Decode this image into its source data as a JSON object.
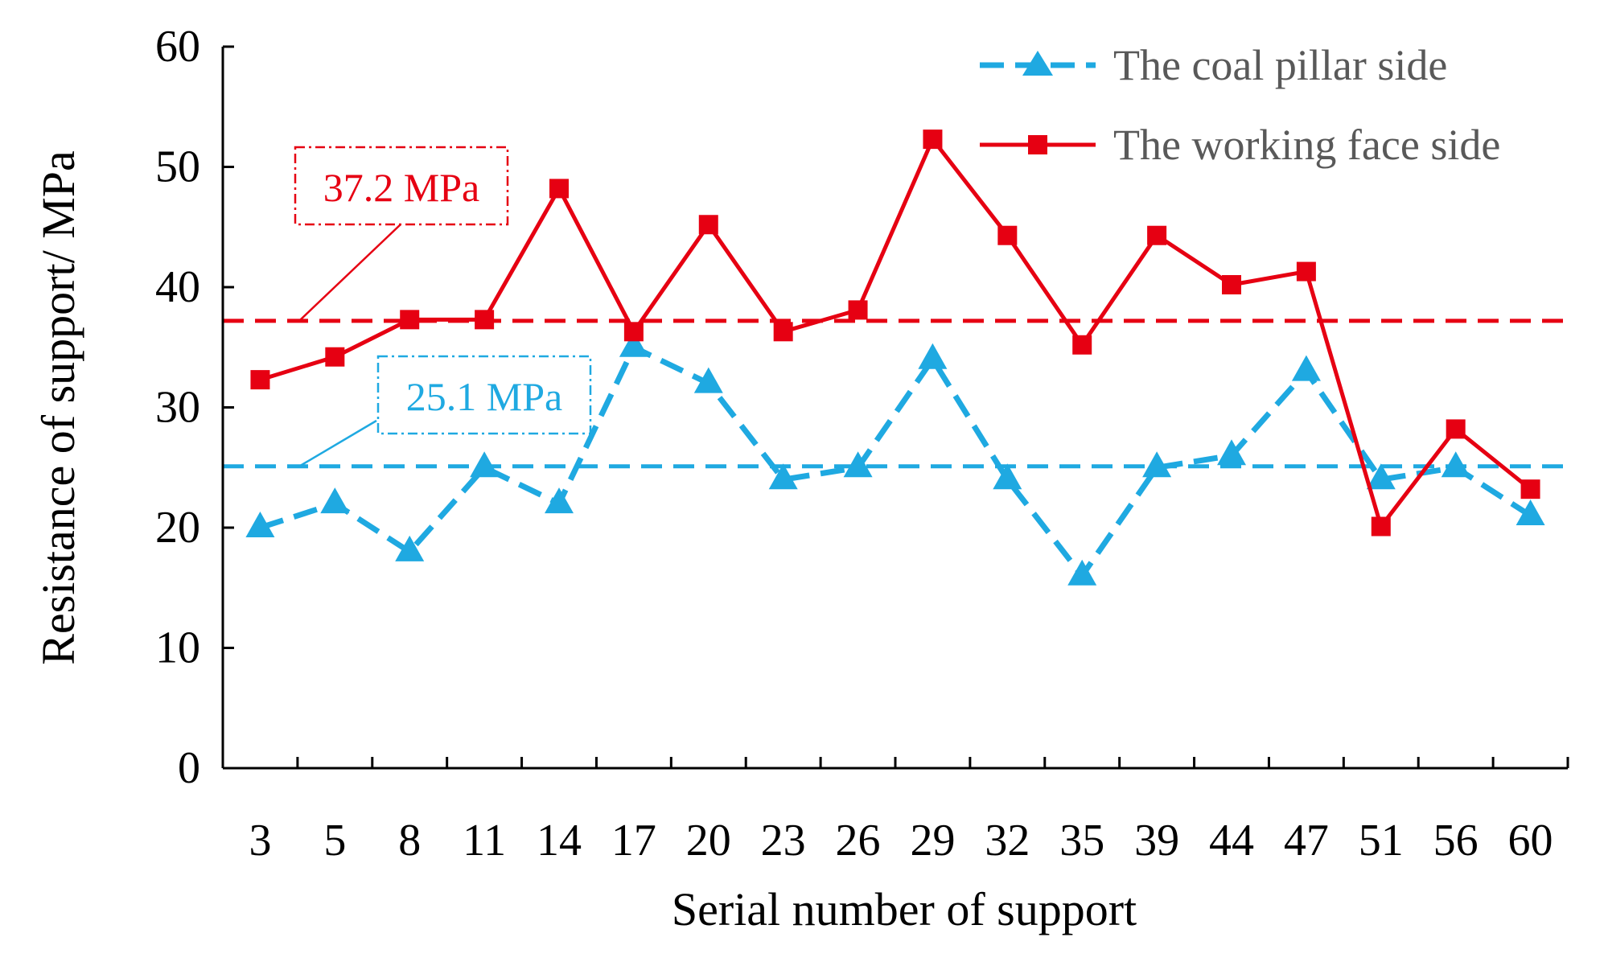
{
  "chart_data": {
    "type": "line",
    "title": "",
    "xlabel": "Serial number of support",
    "ylabel": "Resistance of  support/ MPa",
    "ylim": [
      0,
      60
    ],
    "yticks": [
      0,
      10,
      20,
      30,
      40,
      50,
      60
    ],
    "grid": false,
    "legend_position": "top-right",
    "categories": [
      "3",
      "5",
      "8",
      "11",
      "14",
      "17",
      "20",
      "23",
      "26",
      "29",
      "32",
      "35",
      "39",
      "44",
      "47",
      "51",
      "56",
      "60"
    ],
    "series": [
      {
        "name": "The coal pillar side",
        "color": "#1FA9E1",
        "line_style": "dashed",
        "marker": "triangle",
        "values": [
          20,
          22,
          18,
          25,
          22,
          35,
          32,
          24,
          25,
          34,
          24,
          16,
          25,
          26,
          33,
          24,
          25,
          21
        ]
      },
      {
        "name": "The working face side",
        "color": "#E60012",
        "line_style": "solid",
        "marker": "square",
        "values": [
          32.3,
          34.2,
          37.3,
          37.3,
          48.2,
          36.3,
          45.2,
          36.3,
          38.1,
          52.3,
          44.3,
          35.2,
          44.3,
          40.2,
          41.3,
          20.1,
          28.2,
          23.2
        ]
      }
    ],
    "reference_lines": [
      {
        "value": 37.2,
        "label": "37.2 MPa",
        "color": "#E60012"
      },
      {
        "value": 25.1,
        "label": "25.1 MPa",
        "color": "#1FA9E1"
      }
    ]
  }
}
